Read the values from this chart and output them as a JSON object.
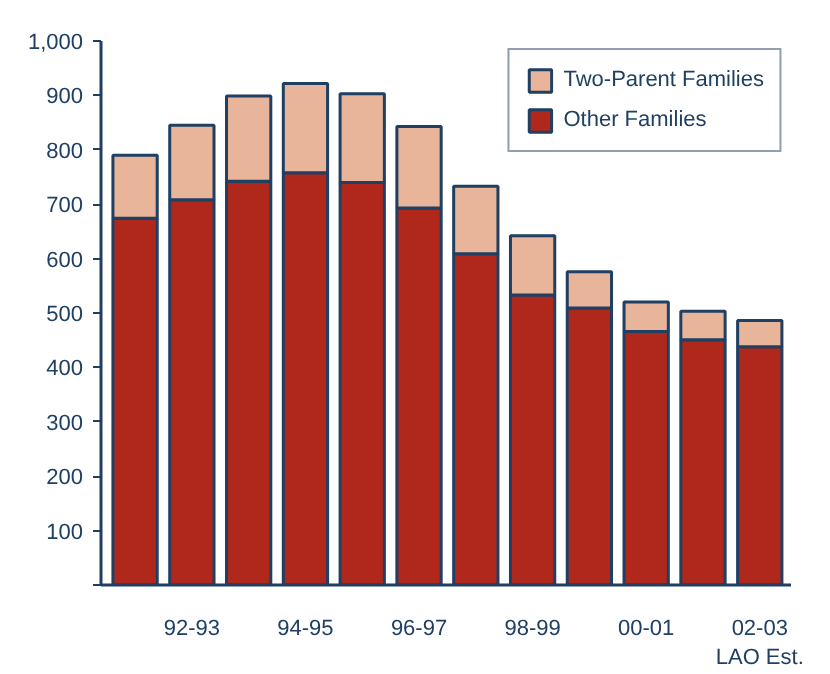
{
  "chart_data": {
    "type": "bar",
    "stacked": true,
    "categories": [
      null,
      "92-93",
      null,
      "94-95",
      null,
      "96-97",
      null,
      "98-99",
      null,
      "00-01",
      null,
      "02-03\nLAO Est."
    ],
    "series": [
      {
        "name": "Other Families",
        "color": "#b0281c",
        "values": [
          674,
          708,
          742,
          758,
          740,
          693,
          609,
          533,
          509,
          466,
          451,
          438
        ]
      },
      {
        "name": "Two-Parent Families",
        "color": "#e8b49a",
        "values": [
          116,
          137,
          157,
          164,
          163,
          150,
          124,
          109,
          67,
          54,
          52,
          48
        ]
      }
    ],
    "ylim": [
      0,
      1000
    ],
    "yticks": [
      {
        "value": 0,
        "label": null
      },
      100,
      200,
      300,
      400,
      500,
      600,
      700,
      800,
      900,
      {
        "value": 1000,
        "label": "1,000"
      }
    ],
    "grid": false,
    "legend": "top right"
  }
}
